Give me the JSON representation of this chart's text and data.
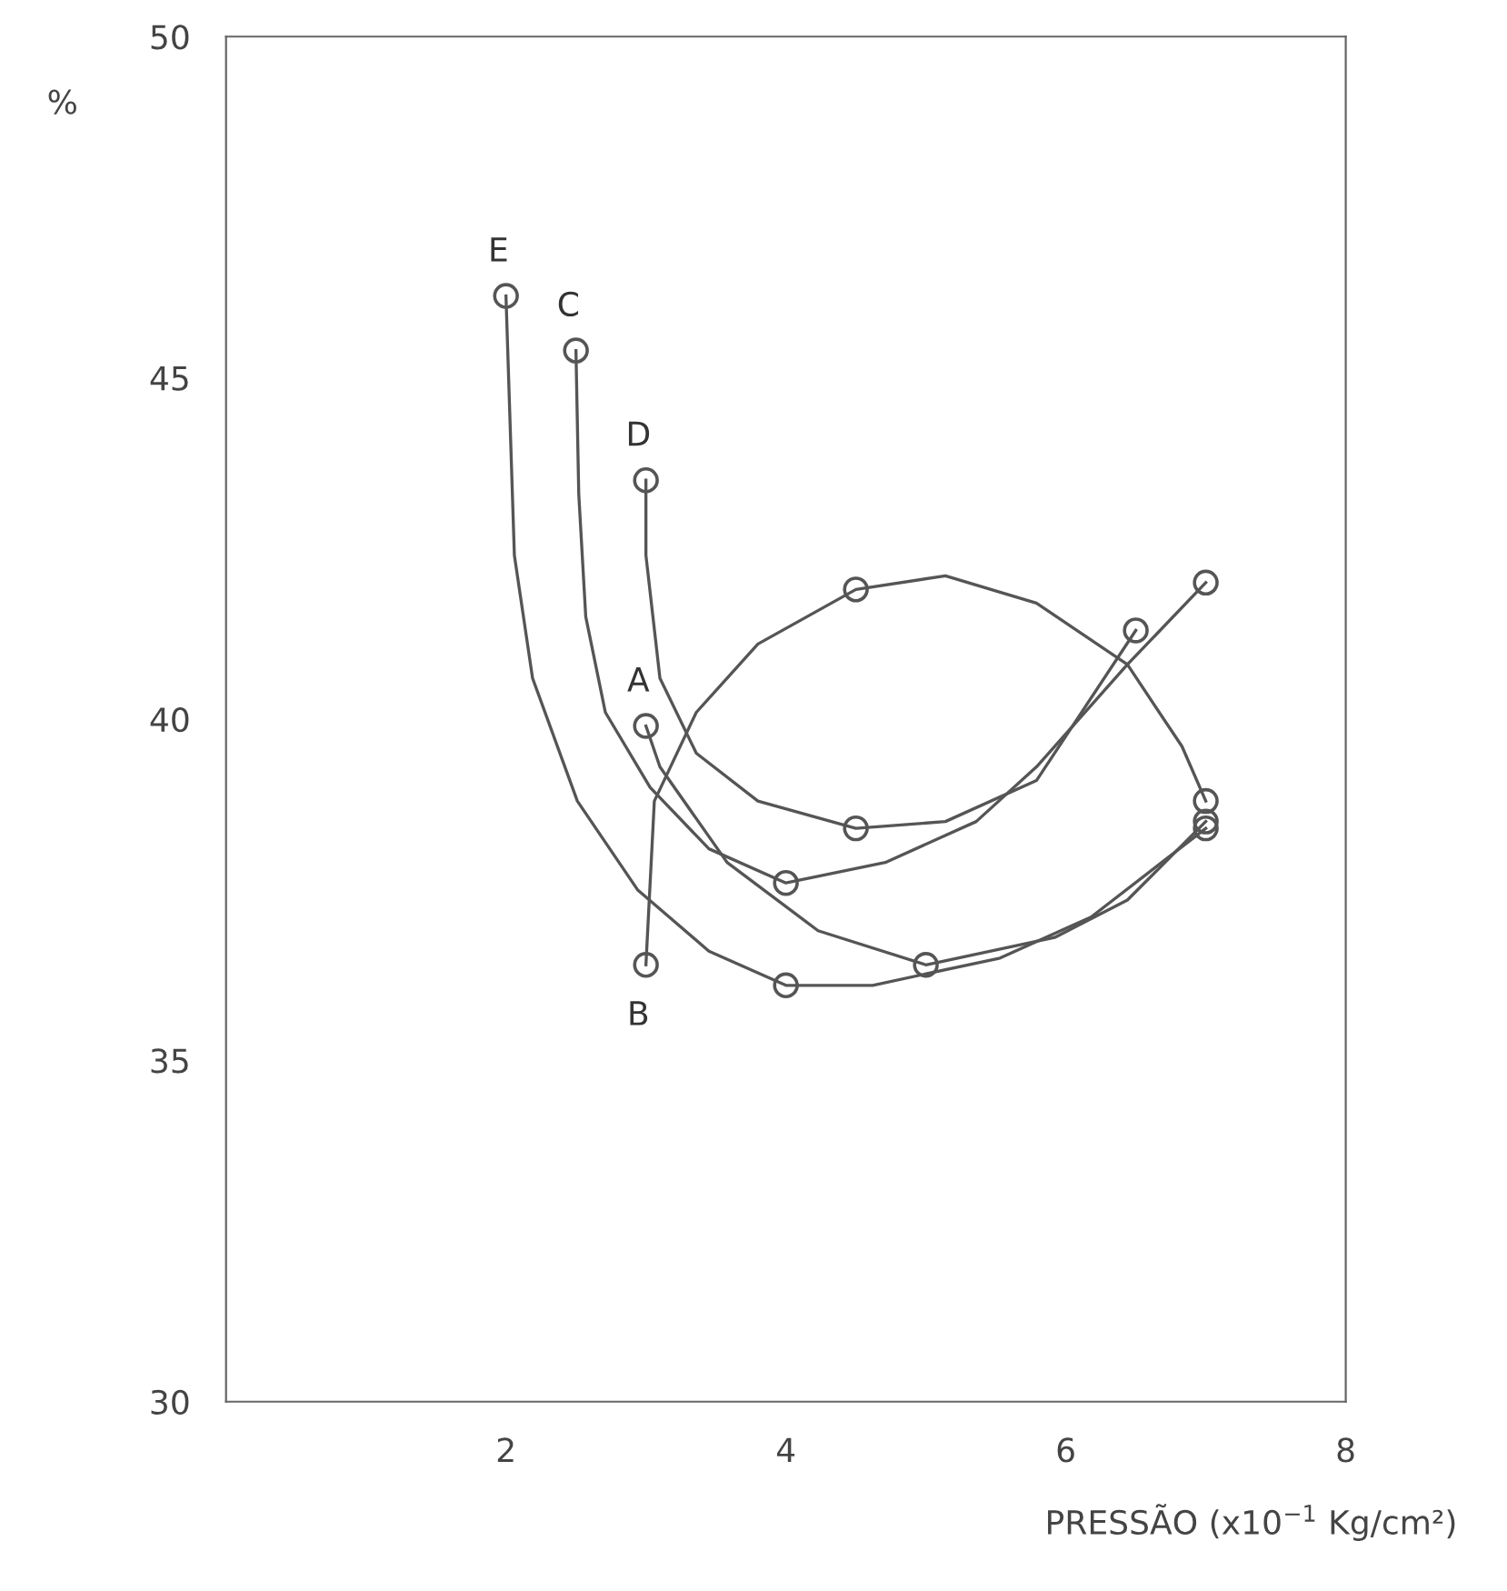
{
  "chart_data": {
    "type": "line",
    "xlabel": "PRESSÃO (x10$^{−1}$ Kg/cm²)",
    "ylabel": "%",
    "xlim": [
      0,
      8
    ],
    "ylim": [
      30,
      50
    ],
    "xticks": [
      2,
      4,
      6,
      8
    ],
    "yticks": [
      30,
      35,
      40,
      45,
      50
    ],
    "grid": false,
    "legend": false,
    "line_style": "solid",
    "series": [
      {
        "name": "E",
        "color": "#555555",
        "marker": "none",
        "x": [
          2.0,
          2.06,
          2.19,
          2.51,
          2.94,
          3.45,
          4.0,
          4.62,
          5.53,
          6.18,
          7.0
        ],
        "values": [
          46.2,
          42.4,
          40.6,
          38.8,
          37.5,
          36.6,
          36.1,
          36.1,
          36.5,
          37.1,
          38.4
        ]
      },
      {
        "name": "C",
        "color": "#555555",
        "marker": "none",
        "x": [
          2.5,
          2.52,
          2.57,
          2.71,
          3.03,
          3.45,
          4.0,
          4.71,
          5.36,
          5.79,
          6.44,
          7.0
        ],
        "values": [
          45.4,
          43.3,
          41.5,
          40.1,
          39.0,
          38.1,
          37.6,
          37.9,
          38.5,
          39.3,
          40.8,
          42.0
        ]
      },
      {
        "name": "D",
        "color": "#555555",
        "marker": "none",
        "x": [
          3.0,
          3.0,
          3.1,
          3.36,
          3.8,
          4.5,
          5.14,
          5.79,
          6.5
        ],
        "values": [
          43.5,
          42.4,
          40.6,
          39.5,
          38.8,
          38.4,
          38.5,
          39.1,
          41.3
        ]
      },
      {
        "name": "A",
        "color": "#555555",
        "marker": "none",
        "x": [
          3.0,
          3.1,
          3.58,
          4.23,
          5.0,
          5.92,
          6.44,
          7.0
        ],
        "values": [
          39.9,
          39.3,
          37.9,
          36.9,
          36.4,
          36.8,
          37.35,
          38.5
        ]
      },
      {
        "name": "B",
        "color": "#555555",
        "marker": "none",
        "x": [
          3.0,
          3.06,
          3.36,
          3.8,
          4.5,
          5.14,
          5.79,
          6.44,
          6.83,
          7.0
        ],
        "values": [
          36.4,
          38.8,
          40.1,
          41.1,
          41.9,
          42.1,
          41.7,
          40.8,
          39.6,
          38.8
        ]
      },
      {
        "type": "scatter",
        "color": "#555555",
        "marker": "circle",
        "x": [
          2.0,
          4.0,
          7.0,
          2.5,
          4.0,
          7.0,
          3.0,
          4.5,
          6.5,
          3.0,
          5.0,
          7.0,
          3.0,
          4.5,
          7.0
        ],
        "values": [
          46.2,
          36.1,
          38.4,
          45.4,
          37.6,
          42.0,
          43.5,
          38.4,
          41.3,
          39.9,
          36.4,
          38.5,
          36.4,
          41.9,
          38.8
        ]
      }
    ]
  }
}
